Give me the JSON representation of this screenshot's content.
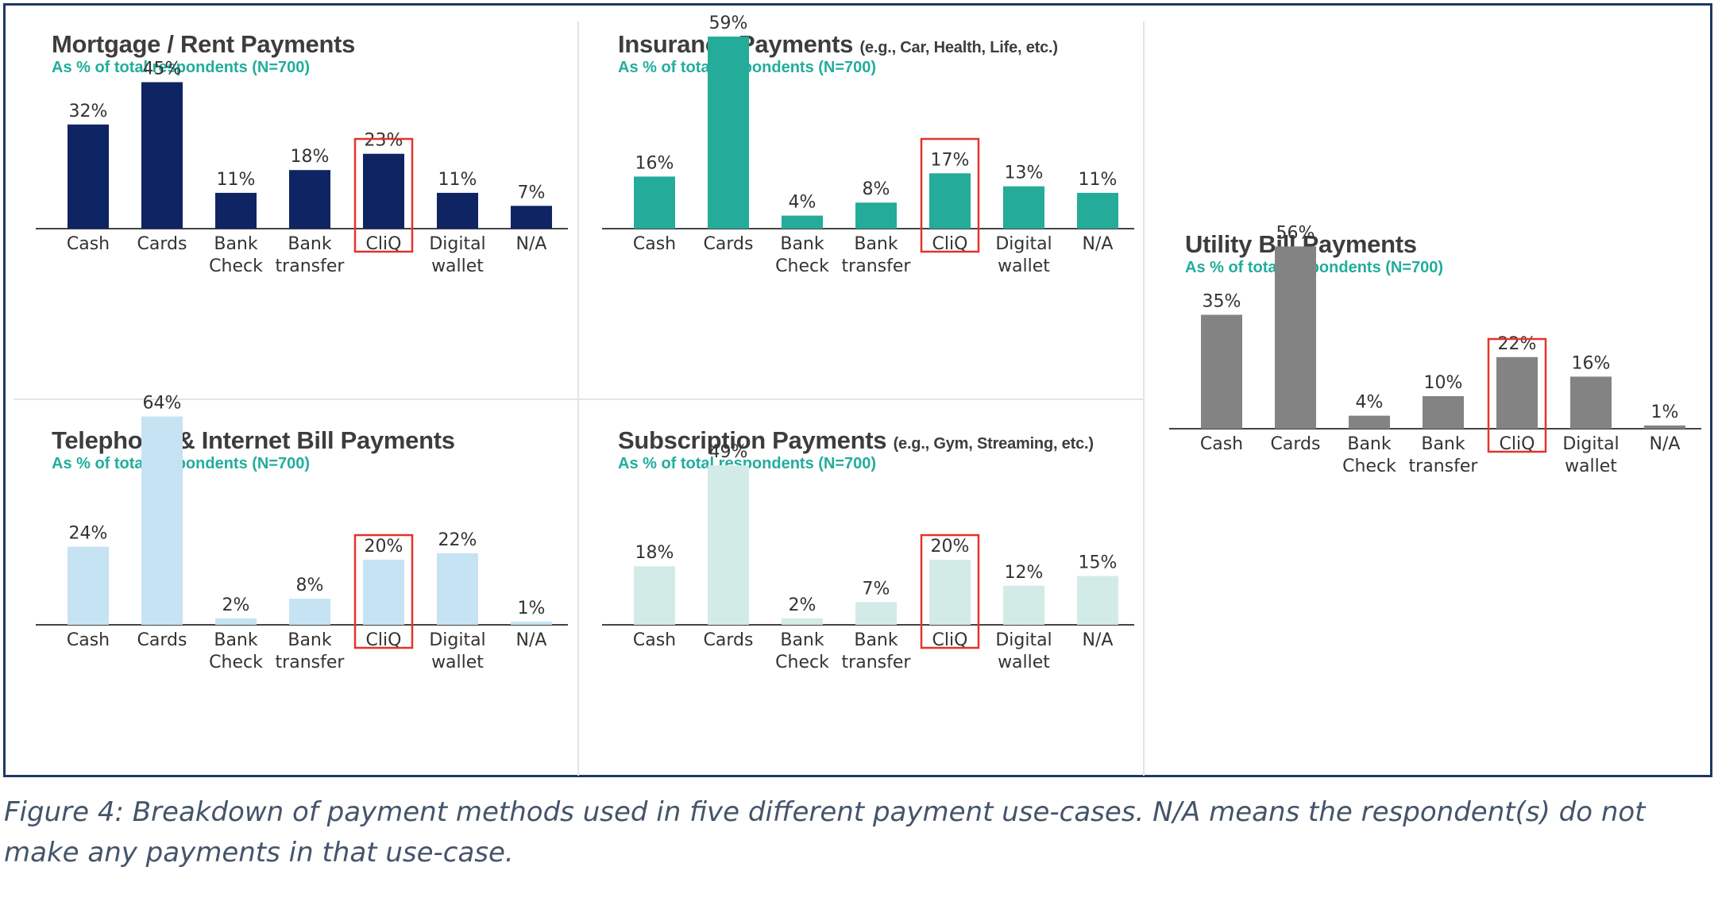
{
  "colors": {
    "frame": "#1f3864",
    "subtitle": "#22ad9c",
    "highlight": "#e5332a",
    "mortgage": "#0f2463",
    "insurance": "#24ab9a",
    "utility": "#838383",
    "telephone": "#c6e3f4",
    "subscription": "#d3ebe6"
  },
  "caption": "Figure 4: Breakdown of payment methods used in five different payment use-cases. N/A means the respondent(s) do not make any payments in that use-case.",
  "chart_data": [
    {
      "id": "mortgage",
      "type": "bar",
      "title": "Mortgage / Rent Payments",
      "title_note": "",
      "subtitle": "As % of total respondents (N=700)",
      "categories": [
        "Cash",
        "Cards",
        "Bank Check",
        "Bank transfer",
        "CliQ",
        "Digital wallet",
        "N/A"
      ],
      "category_lines": [
        [
          "Cash"
        ],
        [
          "Cards"
        ],
        [
          "Bank",
          "Check"
        ],
        [
          "Bank",
          "transfer"
        ],
        [
          "CliQ"
        ],
        [
          "Digital",
          "wallet"
        ],
        [
          "N/A"
        ]
      ],
      "values": [
        32,
        45,
        11,
        18,
        23,
        11,
        7
      ],
      "value_labels": [
        "32%",
        "45%",
        "11%",
        "18%",
        "23%",
        "11%",
        "7%"
      ],
      "unit": "%",
      "highlighted_category": "CliQ",
      "color": "#0f2463"
    },
    {
      "id": "insurance",
      "type": "bar",
      "title": "Insurance Payments",
      "title_note": "(e.g., Car, Health, Life, etc.)",
      "subtitle": "As % of total respondents (N=700)",
      "categories": [
        "Cash",
        "Cards",
        "Bank Check",
        "Bank transfer",
        "CliQ",
        "Digital wallet",
        "N/A"
      ],
      "category_lines": [
        [
          "Cash"
        ],
        [
          "Cards"
        ],
        [
          "Bank",
          "Check"
        ],
        [
          "Bank",
          "transfer"
        ],
        [
          "CliQ"
        ],
        [
          "Digital",
          "wallet"
        ],
        [
          "N/A"
        ]
      ],
      "values": [
        16,
        59,
        4,
        8,
        17,
        13,
        11
      ],
      "value_labels": [
        "16%",
        "59%",
        "4%",
        "8%",
        "17%",
        "13%",
        "11%"
      ],
      "unit": "%",
      "highlighted_category": "CliQ",
      "color": "#24ab9a"
    },
    {
      "id": "utility",
      "type": "bar",
      "title": "Utility Bill Payments",
      "title_note": "",
      "subtitle": "As % of total respondents (N=700)",
      "categories": [
        "Cash",
        "Cards",
        "Bank Check",
        "Bank transfer",
        "CliQ",
        "Digital wallet",
        "N/A"
      ],
      "category_lines": [
        [
          "Cash"
        ],
        [
          "Cards"
        ],
        [
          "Bank",
          "Check"
        ],
        [
          "Bank",
          "transfer"
        ],
        [
          "CliQ"
        ],
        [
          "Digital",
          "wallet"
        ],
        [
          "N/A"
        ]
      ],
      "values": [
        35,
        56,
        4,
        10,
        22,
        16,
        1
      ],
      "value_labels": [
        "35%",
        "56%",
        "4%",
        "10%",
        "22%",
        "16%",
        "1%"
      ],
      "unit": "%",
      "highlighted_category": "CliQ",
      "color": "#838383"
    },
    {
      "id": "telephone",
      "type": "bar",
      "title": "Telephone & Internet Bill Payments",
      "title_note": "",
      "subtitle": "As % of total respondents (N=700)",
      "categories": [
        "Cash",
        "Cards",
        "Bank Check",
        "Bank transfer",
        "CliQ",
        "Digital wallet",
        "N/A"
      ],
      "category_lines": [
        [
          "Cash"
        ],
        [
          "Cards"
        ],
        [
          "Bank",
          "Check"
        ],
        [
          "Bank",
          "transfer"
        ],
        [
          "CliQ"
        ],
        [
          "Digital",
          "wallet"
        ],
        [
          "N/A"
        ]
      ],
      "values": [
        24,
        64,
        2,
        8,
        20,
        22,
        1
      ],
      "value_labels": [
        "24%",
        "64%",
        "2%",
        "8%",
        "20%",
        "22%",
        "1%"
      ],
      "unit": "%",
      "highlighted_category": "CliQ",
      "color": "#c6e3f4"
    },
    {
      "id": "subscription",
      "type": "bar",
      "title": "Subscription Payments",
      "title_note": "(e.g., Gym, Streaming, etc.)",
      "subtitle": "As % of total respondents (N=700)",
      "categories": [
        "Cash",
        "Cards",
        "Bank Check",
        "Bank transfer",
        "CliQ",
        "Digital wallet",
        "N/A"
      ],
      "category_lines": [
        [
          "Cash"
        ],
        [
          "Cards"
        ],
        [
          "Bank",
          "Check"
        ],
        [
          "Bank",
          "transfer"
        ],
        [
          "CliQ"
        ],
        [
          "Digital",
          "wallet"
        ],
        [
          "N/A"
        ]
      ],
      "values": [
        18,
        49,
        2,
        7,
        20,
        12,
        15
      ],
      "value_labels": [
        "18%",
        "49%",
        "2%",
        "7%",
        "20%",
        "12%",
        "15%"
      ],
      "unit": "%",
      "highlighted_category": "CliQ",
      "color": "#d3ebe6"
    }
  ]
}
